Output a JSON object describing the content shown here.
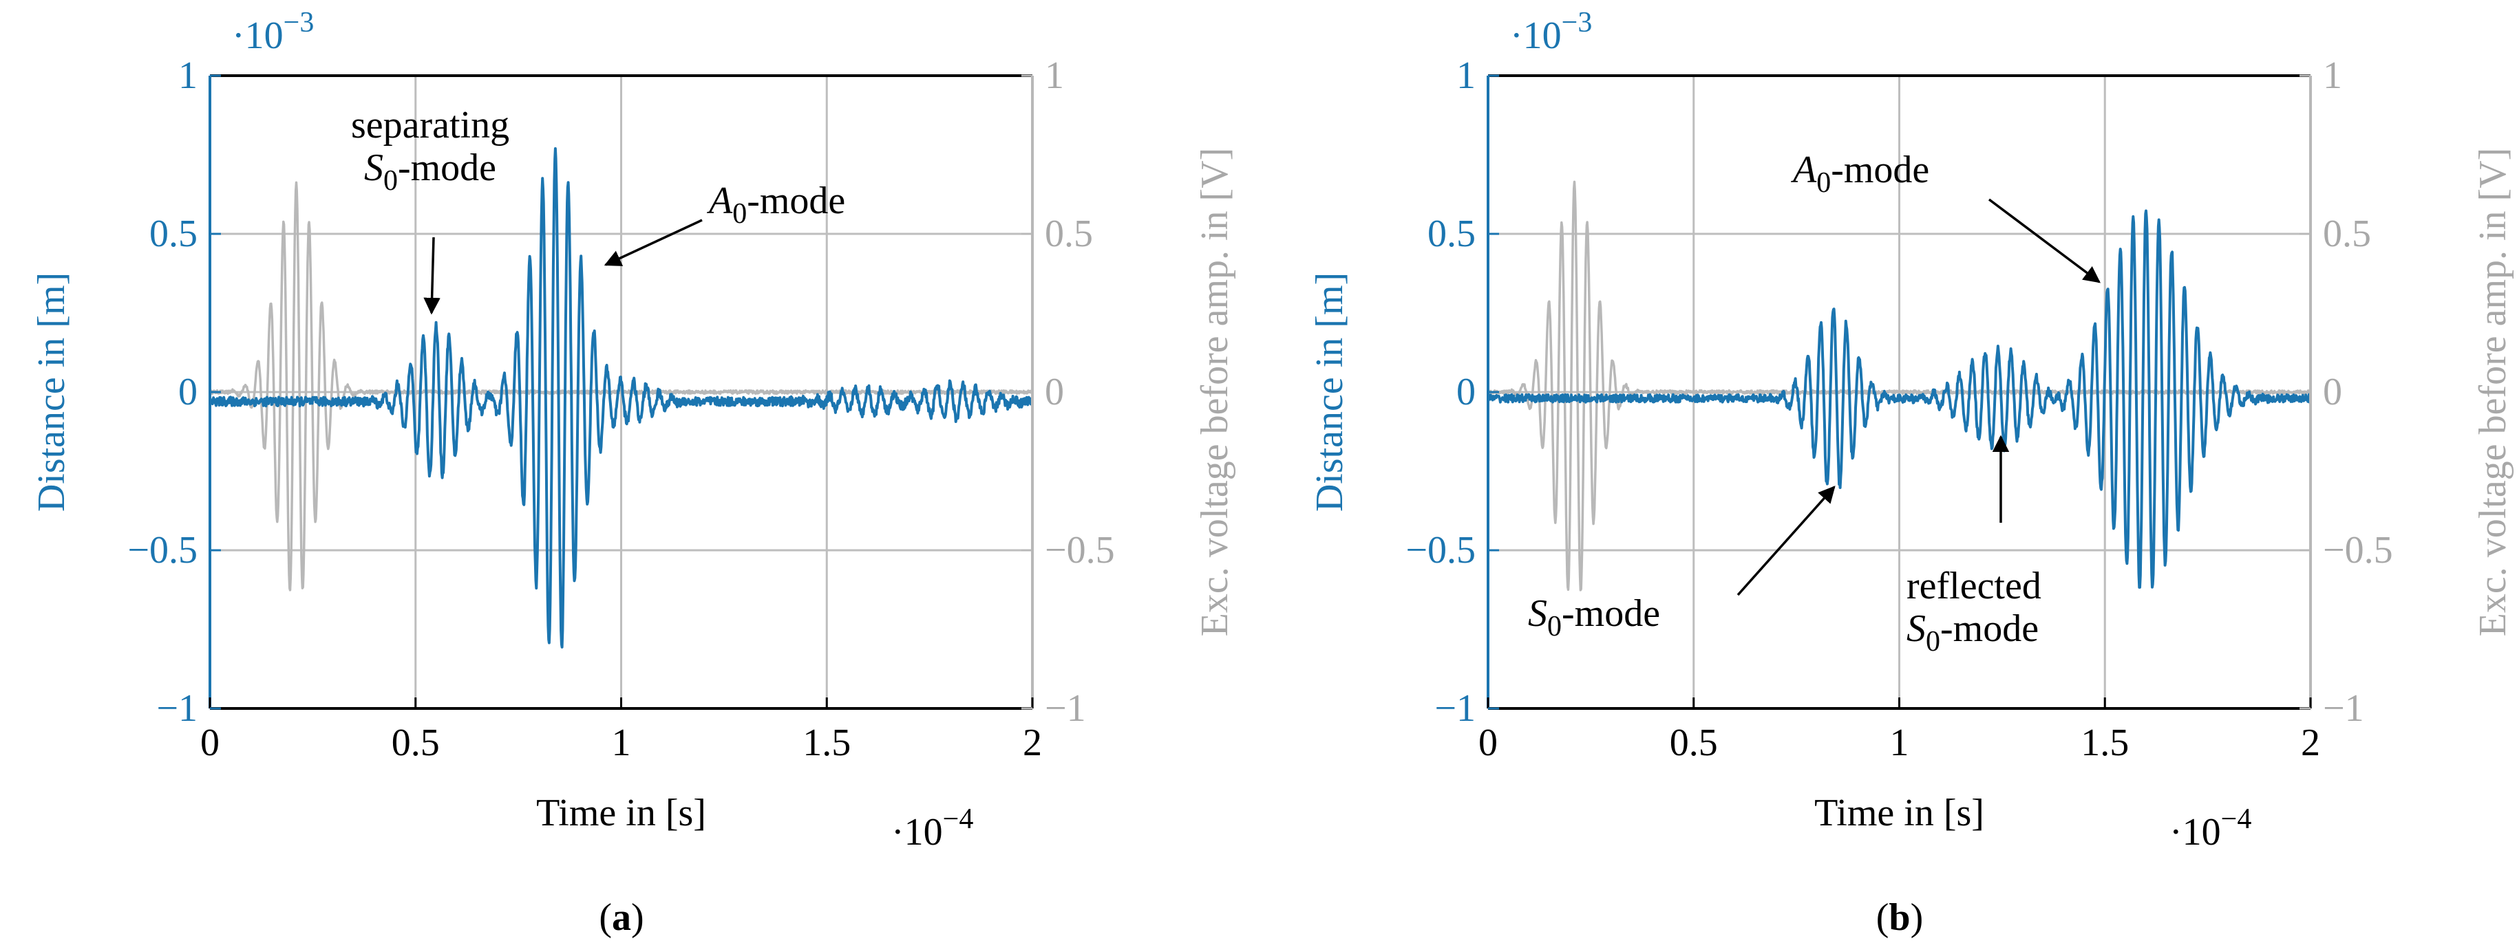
{
  "figure": {
    "panels": [
      {
        "id": "a",
        "caption_letter": "a",
        "left_scale": "·10",
        "left_scale_exp": "−3",
        "bottom_scale": "·10",
        "bottom_scale_exp": "−4",
        "annotations": [
          {
            "name": "separating-s0-label",
            "lines": [
              {
                "text": "separating"
              },
              {
                "italic": "S",
                "sub": "0",
                "text": "-mode"
              }
            ],
            "point_to": [
              0.52,
              0.19
            ]
          },
          {
            "name": "a0-label",
            "lines": [
              {
                "italic": "A",
                "sub": "0",
                "text": "-mode"
              }
            ],
            "point_to": [
              0.96,
              0.38
            ]
          }
        ]
      },
      {
        "id": "b",
        "caption_letter": "b",
        "left_scale": "·10",
        "left_scale_exp": "−3",
        "bottom_scale": "·10",
        "bottom_scale_exp": "−4",
        "annotations": [
          {
            "name": "a0-label",
            "lines": [
              {
                "italic": "A",
                "sub": "0",
                "text": "-mode"
              }
            ],
            "point_to": [
              1.51,
              0.35
            ]
          },
          {
            "name": "s0-label",
            "lines": [
              {
                "italic": "S",
                "sub": "0",
                "text": "-mode"
              }
            ],
            "point_to": [
              0.82,
              -0.29
            ]
          },
          {
            "name": "reflected-s0-label",
            "lines": [
              {
                "text": "reflected"
              },
              {
                "italic": "S",
                "sub": "0",
                "text": "-mode"
              }
            ],
            "point_to": [
              1.25,
              -0.22
            ]
          }
        ]
      }
    ]
  },
  "chart_data": [
    {
      "type": "line",
      "panel": "a",
      "xlabel": "Time in [s]",
      "ylabel_left": "Distance in [m]",
      "ylabel_right": "Exc. voltage before amp. in [V]",
      "xlim": [
        0,
        2
      ],
      "ylim_left": [
        -1,
        1
      ],
      "ylim_right": [
        -1,
        1
      ],
      "x_ticks": [
        "0",
        "0.5",
        "1",
        "1.5",
        "2"
      ],
      "y_ticks_left": [
        "−1",
        "−0.5",
        "0",
        "0.5",
        "1"
      ],
      "y_ticks_right": [
        "−1",
        "−0.5",
        "0",
        "0.5",
        "1"
      ],
      "grid": true,
      "colors": {
        "distance": "#1b75b0",
        "excitation": "#b8b8b8",
        "axis": "#000000",
        "grid": "#bebebe",
        "label_right": "#a8a8a8"
      },
      "series": [
        {
          "name": "Excitation voltage",
          "axis": "right",
          "noise": 0.005,
          "bursts": [
            {
              "center": 0.21,
              "amp": 0.66,
              "sigma": 0.048,
              "freq": 3.2
            }
          ]
        },
        {
          "name": "Distance",
          "axis": "left",
          "baseline": -0.03,
          "noise": 0.014,
          "bursts": [
            {
              "center": 0.55,
              "amp": 0.24,
              "sigma": 0.055,
              "freq": 3.2
            },
            {
              "center": 0.84,
              "amp": 0.8,
              "sigma": 0.058,
              "freq": 3.2
            },
            {
              "center": 1.03,
              "amp": 0.06,
              "sigma": 0.05,
              "freq": 3.2
            },
            {
              "center": 1.6,
              "amp": 0.045,
              "sigma": 0.07,
              "freq": 3.2
            },
            {
              "center": 1.8,
              "amp": 0.055,
              "sigma": 0.08,
              "freq": 3.2
            }
          ]
        }
      ]
    },
    {
      "type": "line",
      "panel": "b",
      "xlabel": "Time in [s]",
      "ylabel_left": "Distance in [m]",
      "ylabel_right": "Exc. voltage before amp. in [V]",
      "xlim": [
        0,
        2
      ],
      "ylim_left": [
        -1,
        1
      ],
      "ylim_right": [
        -1,
        1
      ],
      "x_ticks": [
        "0",
        "0.5",
        "1",
        "1.5",
        "2"
      ],
      "y_ticks_left": [
        "−1",
        "−0.5",
        "0",
        "0.5",
        "1"
      ],
      "y_ticks_right": [
        "−1",
        "−0.5",
        "0",
        "0.5",
        "1"
      ],
      "grid": true,
      "colors": {
        "distance": "#1b75b0",
        "excitation": "#b8b8b8",
        "axis": "#000000",
        "grid": "#bebebe",
        "label_right": "#a8a8a8"
      },
      "series": [
        {
          "name": "Excitation voltage",
          "axis": "right",
          "noise": 0.005,
          "bursts": [
            {
              "center": 0.21,
              "amp": 0.66,
              "sigma": 0.048,
              "freq": 3.2
            }
          ]
        },
        {
          "name": "Distance",
          "axis": "left",
          "baseline": -0.02,
          "noise": 0.012,
          "bursts": [
            {
              "center": 0.84,
              "amp": 0.29,
              "sigma": 0.05,
              "freq": 3.2
            },
            {
              "center": 1.24,
              "amp": 0.16,
              "sigma": 0.075,
              "freq": 3.2
            },
            {
              "center": 1.6,
              "amp": 0.6,
              "sigma": 0.09,
              "freq": 3.2
            }
          ]
        }
      ]
    }
  ]
}
